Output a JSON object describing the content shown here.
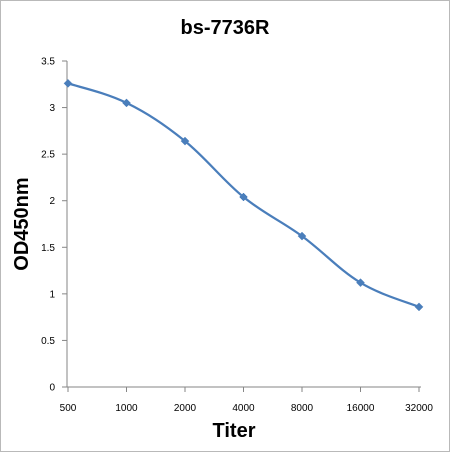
{
  "chart_data": {
    "type": "line",
    "title": "bs-7736R",
    "xlabel": "Titer",
    "ylabel": "OD450nm",
    "categories": [
      "500",
      "1000",
      "2000",
      "4000",
      "8000",
      "16000",
      "32000"
    ],
    "series": [
      {
        "values": [
          3.26,
          3.05,
          2.64,
          2.04,
          1.62,
          1.12,
          0.86
        ],
        "color": "#4a7ebb",
        "marker": "diamond",
        "smooth": true
      }
    ],
    "ylim": [
      0,
      3.5
    ],
    "yticks": [
      "0",
      "0.5",
      "1",
      "1.5",
      "2",
      "2.5",
      "3",
      "3.5"
    ],
    "grid": false,
    "legend": "none"
  }
}
